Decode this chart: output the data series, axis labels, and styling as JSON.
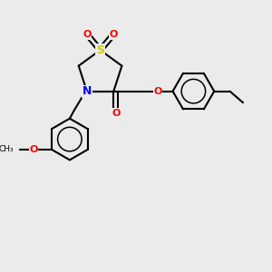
{
  "background_color": "#ebebeb",
  "bond_color": "#000000",
  "bond_width": 1.5,
  "N_color": "#0000ff",
  "O_color": "#ff0000",
  "S_color": "#cccc00",
  "figsize": [
    3.0,
    3.0
  ],
  "dpi": 100,
  "xlim": [
    0,
    10
  ],
  "ylim": [
    0,
    10
  ]
}
